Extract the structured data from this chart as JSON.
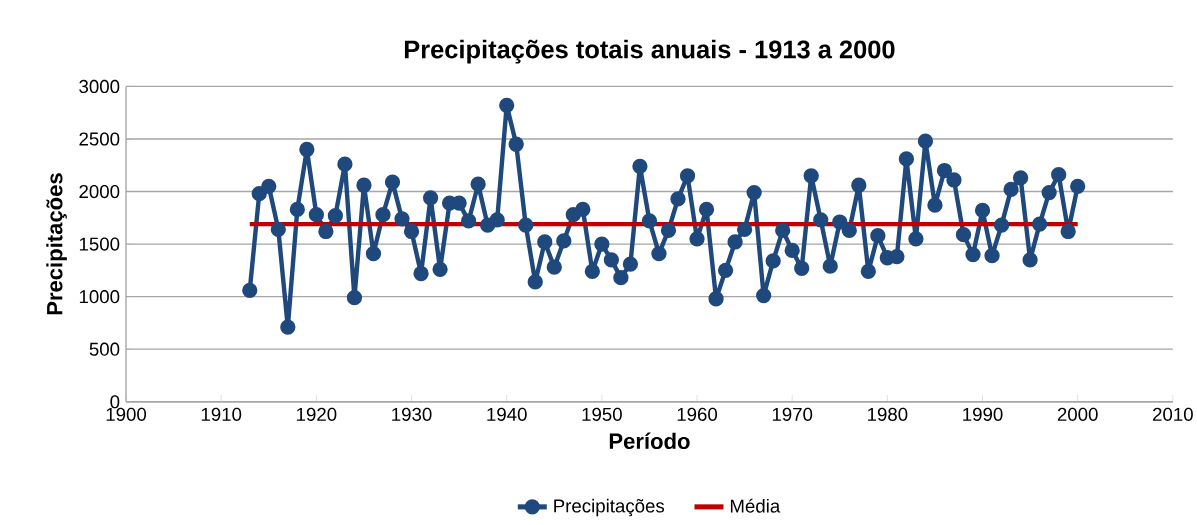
{
  "chart_data": {
    "type": "line",
    "title": "Precipitações totais anuais - 1913 a 2000",
    "xlabel": "Período",
    "ylabel": "Precipitações",
    "xlim": [
      1900,
      2010
    ],
    "xticks": [
      1900,
      1910,
      1920,
      1930,
      1940,
      1950,
      1960,
      1970,
      1980,
      1990,
      2000,
      2010
    ],
    "ylim": [
      0,
      3000
    ],
    "yticks": [
      0,
      500,
      1000,
      1500,
      2000,
      2500,
      3000
    ],
    "grid": "y",
    "legend": "bottom",
    "series": [
      {
        "name": "Precipitações",
        "color": "#1f497d",
        "marker": "circle",
        "x": [
          1913,
          1914,
          1915,
          1916,
          1917,
          1918,
          1919,
          1920,
          1921,
          1922,
          1923,
          1924,
          1925,
          1926,
          1927,
          1928,
          1929,
          1930,
          1931,
          1932,
          1933,
          1934,
          1935,
          1936,
          1937,
          1938,
          1939,
          1940,
          1941,
          1942,
          1943,
          1944,
          1945,
          1946,
          1947,
          1948,
          1949,
          1950,
          1951,
          1952,
          1953,
          1954,
          1955,
          1956,
          1957,
          1958,
          1959,
          1960,
          1961,
          1962,
          1963,
          1964,
          1965,
          1966,
          1967,
          1968,
          1969,
          1970,
          1971,
          1972,
          1973,
          1974,
          1975,
          1976,
          1977,
          1978,
          1979,
          1980,
          1981,
          1982,
          1983,
          1984,
          1985,
          1986,
          1987,
          1988,
          1989,
          1990,
          1991,
          1992,
          1993,
          1994,
          1995,
          1996,
          1997,
          1998,
          1999,
          2000
        ],
        "values": [
          1060,
          1980,
          2050,
          1640,
          710,
          1830,
          2400,
          1780,
          1620,
          1770,
          2260,
          990,
          2060,
          1410,
          1780,
          2090,
          1740,
          1620,
          1220,
          1940,
          1260,
          1890,
          1890,
          1720,
          2070,
          1680,
          1730,
          2820,
          2450,
          1680,
          1140,
          1520,
          1280,
          1530,
          1780,
          1830,
          1240,
          1500,
          1350,
          1180,
          1310,
          2240,
          1720,
          1410,
          1630,
          1930,
          2150,
          1550,
          1830,
          980,
          1250,
          1520,
          1640,
          1990,
          1010,
          1340,
          1630,
          1440,
          1270,
          2150,
          1730,
          1290,
          1710,
          1630,
          2060,
          1240,
          1580,
          1370,
          1380,
          2310,
          1550,
          2480,
          1870,
          2200,
          2110,
          1590,
          1400,
          1820,
          1390,
          1680,
          2020,
          2130,
          1350,
          1690,
          1990,
          2160,
          1620,
          2050
        ]
      },
      {
        "name": "Média",
        "color": "#c00000",
        "marker": "none",
        "x": [
          1913,
          2000
        ],
        "values": [
          1690,
          1690
        ]
      }
    ]
  }
}
